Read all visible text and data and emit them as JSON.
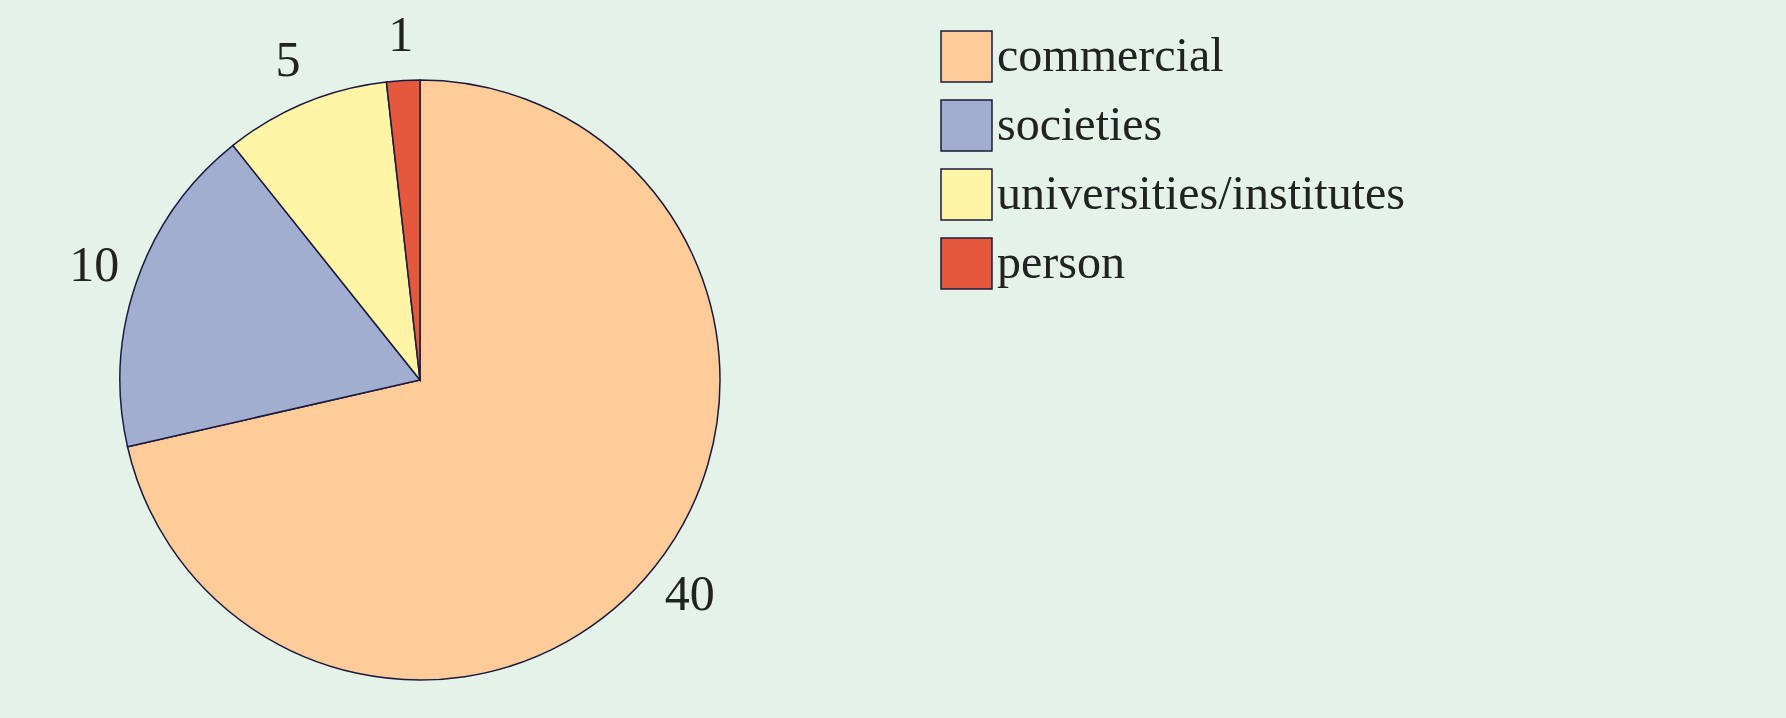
{
  "chart_data": {
    "type": "pie",
    "categories": [
      "commercial",
      "societies",
      "universities/institutes",
      "person"
    ],
    "values": [
      40,
      10,
      5,
      1
    ],
    "colors": [
      "#ffcc99",
      "#a1aecf",
      "#fff5a5",
      "#e4583b"
    ],
    "data_labels": true,
    "legend": "right"
  }
}
